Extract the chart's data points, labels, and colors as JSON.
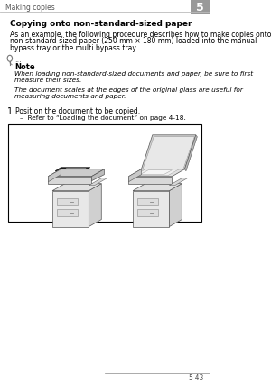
{
  "bg_color": "#ffffff",
  "header_text": "Making copies",
  "header_tab_text": "5",
  "header_tab_bg": "#999999",
  "title": "Copying onto non-standard-sized paper",
  "body1_lines": [
    "As an example, the following procedure describes how to make copies onto",
    "non-standard-sized paper (250 mm × 180 mm) loaded into the manual",
    "bypass tray or the multi bypass tray."
  ],
  "note_label": "Note",
  "note_text1_lines": [
    "When loading non-standard-sized documents and paper, be sure to first",
    "measure their sizes."
  ],
  "note_text2_lines": [
    "The document scales at the edges of the original glass are useful for",
    "measuring documents and paper."
  ],
  "step_num": "1",
  "step_text": "Position the document to be copied.",
  "sub_step": "Refer to “Loading the document” on page 4-18.",
  "footer_text": "5-43",
  "dots_text": "..."
}
